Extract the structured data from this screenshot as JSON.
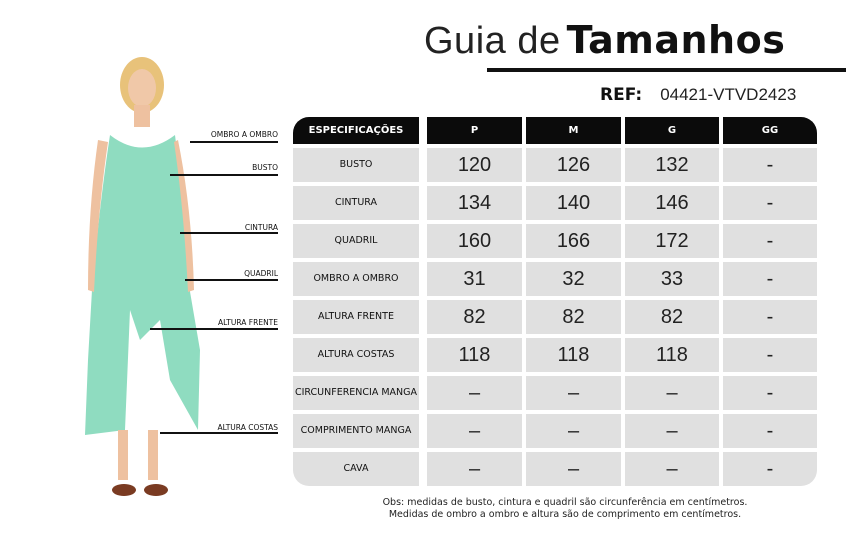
{
  "header": {
    "title_light": "Guia de",
    "title_bold": "Tamanhos",
    "ref_label": "REF:",
    "ref_value": "04421-VTVD2423"
  },
  "figure": {
    "dress_color": "#8fdcc0",
    "labels": [
      "OMBRO A OMBRO",
      "BUSTO",
      "CINTURA",
      "QUADRIL",
      "ALTURA FRENTE",
      "ALTURA COSTAS"
    ]
  },
  "table": {
    "columns": [
      "ESPECIFICAÇÕES",
      "P",
      "M",
      "G",
      "GG"
    ],
    "rows": [
      {
        "spec": "BUSTO",
        "values": [
          "120",
          "126",
          "132",
          "-"
        ]
      },
      {
        "spec": "CINTURA",
        "values": [
          "134",
          "140",
          "146",
          "-"
        ]
      },
      {
        "spec": "QUADRIL",
        "values": [
          "160",
          "166",
          "172",
          "-"
        ]
      },
      {
        "spec": "OMBRO A OMBRO",
        "values": [
          "31",
          "32",
          "33",
          "-"
        ]
      },
      {
        "spec": "ALTURA FRENTE",
        "values": [
          "82",
          "82",
          "82",
          "-"
        ]
      },
      {
        "spec": "ALTURA COSTAS",
        "values": [
          "118",
          "118",
          "118",
          "-"
        ]
      },
      {
        "spec": "CIRCUNFERENCIA MANGA",
        "values": [
          "–",
          "–",
          "–",
          "-"
        ]
      },
      {
        "spec": "COMPRIMENTO MANGA",
        "values": [
          "–",
          "–",
          "–",
          "-"
        ]
      },
      {
        "spec": "CAVA",
        "values": [
          "–",
          "–",
          "–",
          "-"
        ]
      }
    ]
  },
  "notes": [
    "Obs: medidas de busto, cintura e quadril são circunferência em centímetros.",
    "Medidas de ombro a ombro e altura são de comprimento em centímetros."
  ]
}
